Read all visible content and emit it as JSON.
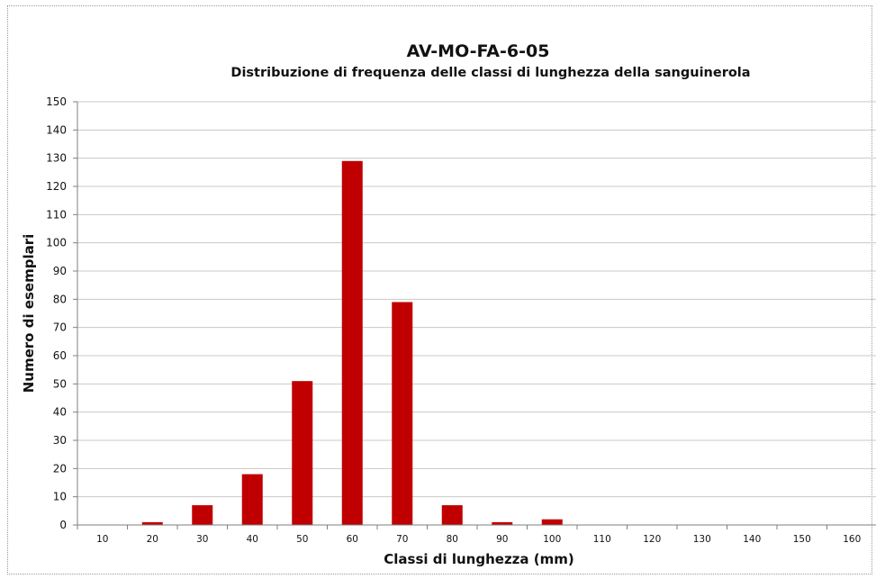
{
  "chart_data": {
    "type": "bar",
    "title": "AV-MO-FA-6-05",
    "subtitle": "Distribuzione di frequenza delle classi di lunghezza della sanguinerola",
    "xlabel": "Classi di lunghezza (mm)",
    "ylabel": "Numero di esemplari",
    "categories": [
      "10",
      "20",
      "30",
      "40",
      "50",
      "60",
      "70",
      "80",
      "90",
      "100",
      "110",
      "120",
      "130",
      "140",
      "150",
      "160"
    ],
    "values": [
      0,
      1,
      7,
      18,
      51,
      129,
      79,
      7,
      1,
      2,
      0,
      0,
      0,
      0,
      0,
      0
    ],
    "ylim": [
      0,
      150
    ],
    "yticks": [
      0,
      10,
      20,
      30,
      40,
      50,
      60,
      70,
      80,
      90,
      100,
      110,
      120,
      130,
      140,
      150
    ],
    "grid": true,
    "bar_color": "#c00000"
  }
}
